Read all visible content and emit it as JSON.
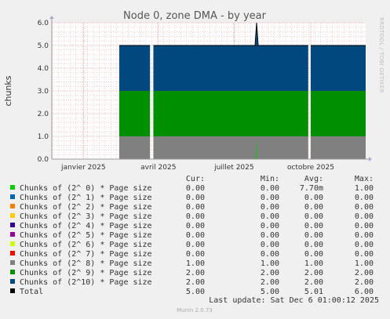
{
  "chart_data": {
    "type": "area",
    "title": "Node 0, zone DMA - by year",
    "ylabel": "chunks",
    "side_label": "RRDTOOL / TOBI OETIKER",
    "ylim": [
      0,
      6
    ],
    "yticks": [
      "0.0",
      "1.0",
      "2.0",
      "3.0",
      "4.0",
      "5.0",
      "6.0"
    ],
    "x_range": [
      "2024-11-24",
      "2025-12-06"
    ],
    "xticks": [
      {
        "label": "janvier 2025",
        "date": "2025-01-01"
      },
      {
        "label": "avril 2025",
        "date": "2025-04-01"
      },
      {
        "label": "juillet 2025",
        "date": "2025-07-01"
      },
      {
        "label": "octobre 2025",
        "date": "2025-10-01"
      }
    ],
    "data_start": "2025-02-13",
    "gaps": [
      [
        "2025-03-22",
        "2025-03-26"
      ],
      [
        "2025-09-28",
        "2025-10-01"
      ]
    ],
    "spike": {
      "date": "2025-07-28",
      "total": 6.0,
      "order0": 1.0
    },
    "series": [
      {
        "name": "Chunks of (2^ 0) * Page size",
        "color": "#00cc00",
        "cur": "0.00",
        "min": "0.00",
        "avg": "7.70m",
        "max": "1.00",
        "level": 0
      },
      {
        "name": "Chunks of (2^ 1) * Page size",
        "color": "#0066b3",
        "cur": "0.00",
        "min": "0.00",
        "avg": "0.00",
        "max": "0.00",
        "level": 0
      },
      {
        "name": "Chunks of (2^ 2) * Page size",
        "color": "#ff8000",
        "cur": "0.00",
        "min": "0.00",
        "avg": "0.00",
        "max": "0.00",
        "level": 0
      },
      {
        "name": "Chunks of (2^ 3) * Page size",
        "color": "#ffcc00",
        "cur": "0.00",
        "min": "0.00",
        "avg": "0.00",
        "max": "0.00",
        "level": 0
      },
      {
        "name": "Chunks of (2^ 4) * Page size",
        "color": "#330099",
        "cur": "0.00",
        "min": "0.00",
        "avg": "0.00",
        "max": "0.00",
        "level": 0
      },
      {
        "name": "Chunks of (2^ 5) * Page size",
        "color": "#990099",
        "cur": "0.00",
        "min": "0.00",
        "avg": "0.00",
        "max": "0.00",
        "level": 0
      },
      {
        "name": "Chunks of (2^ 6) * Page size",
        "color": "#ccff00",
        "cur": "0.00",
        "min": "0.00",
        "avg": "0.00",
        "max": "0.00",
        "level": 0
      },
      {
        "name": "Chunks of (2^ 7) * Page size",
        "color": "#ff0000",
        "cur": "0.00",
        "min": "0.00",
        "avg": "0.00",
        "max": "0.00",
        "level": 0
      },
      {
        "name": "Chunks of (2^ 8) * Page size",
        "color": "#808080",
        "cur": "1.00",
        "min": "1.00",
        "avg": "1.00",
        "max": "1.00",
        "level": 1
      },
      {
        "name": "Chunks of (2^ 9) * Page size",
        "color": "#008f00",
        "cur": "2.00",
        "min": "2.00",
        "avg": "2.00",
        "max": "2.00",
        "level": 2
      },
      {
        "name": "Chunks of (2^10) * Page size",
        "color": "#00487d",
        "cur": "2.00",
        "min": "2.00",
        "avg": "2.00",
        "max": "2.00",
        "level": 2
      },
      {
        "name": "Total",
        "color": "#000000",
        "cur": "5.00",
        "min": "5.00",
        "avg": "5.01",
        "max": "6.00",
        "level": 5
      }
    ],
    "legend_headers": [
      "Cur:",
      "Min:",
      "Avg:",
      "Max:"
    ],
    "last_update": "Last update: Sat Dec  6 01:00:12 2025",
    "footer": "Munin 2.0.73"
  }
}
